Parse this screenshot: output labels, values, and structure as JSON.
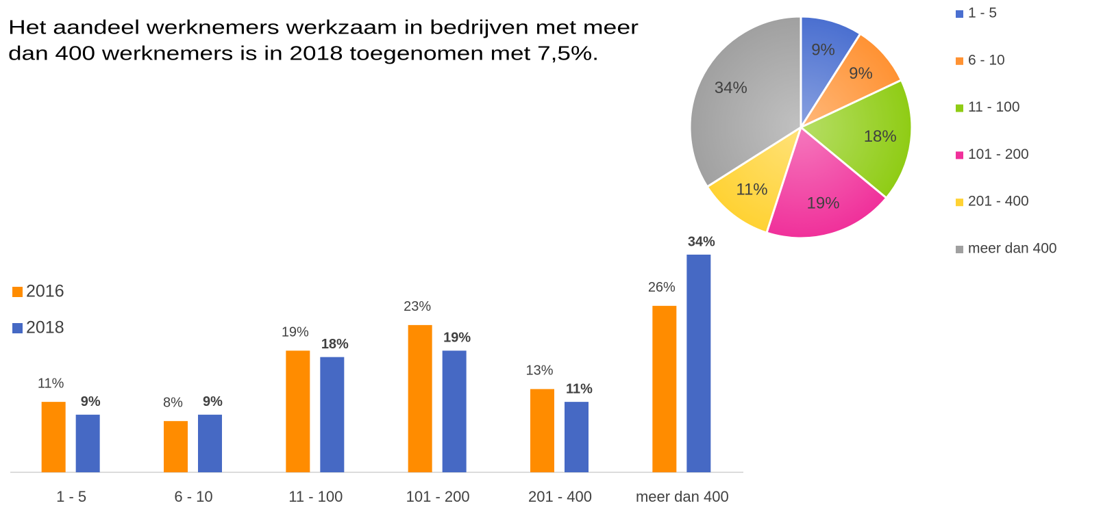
{
  "chart_data": [
    {
      "type": "bar",
      "annotation": [
        "Het aandeel werknemers werkzaam in bedrijven met meer",
        "dan 400 werknemers is in 2018 toegenomen met 7,5%."
      ],
      "categories": [
        "1 - 5",
        "6 - 10",
        "11 - 100",
        "101 - 200",
        "201 - 400",
        "meer dan 400"
      ],
      "series": [
        {
          "name": "2016",
          "color": "#ff8c00",
          "values": [
            11,
            8,
            19,
            23,
            13,
            26
          ],
          "value_labels": [
            "11%",
            "8%",
            "19%",
            "23%",
            "13%",
            "26%"
          ]
        },
        {
          "name": "2018",
          "color": "#4669c4",
          "values": [
            9,
            9,
            18,
            19,
            11,
            34
          ],
          "value_labels": [
            "9%",
            "9%",
            "18%",
            "19%",
            "11%",
            "34%"
          ]
        }
      ],
      "legend": "left"
    },
    {
      "type": "pie",
      "categories": [
        "1 - 5",
        "6 - 10",
        "11 - 100",
        "101 - 200",
        "201 - 400",
        "meer dan 400"
      ],
      "values": [
        9,
        9,
        18,
        19,
        11,
        34
      ],
      "value_labels": [
        "9%",
        "9%",
        "18%",
        "19%",
        "11%",
        "34%"
      ],
      "colors": [
        "#4a6fd0",
        "#ff9233",
        "#8fcc14",
        "#f0309a",
        "#ffd233",
        "#a0a0a0"
      ],
      "legend": "right"
    }
  ]
}
